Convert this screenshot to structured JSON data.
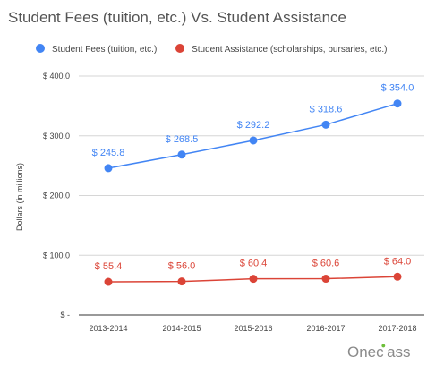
{
  "chart_data": {
    "type": "line",
    "title": "Student Fees (tuition, etc.)  Vs. Student Assistance",
    "ylabel": "Dollars (in millions)",
    "xlabel": "",
    "categories": [
      "2013-2014",
      "2014-2015",
      "2015-2016",
      "2016-2017",
      "2017-2018"
    ],
    "ylim": [
      0,
      400
    ],
    "yticks": [
      {
        "value": 0,
        "label": "$ -"
      },
      {
        "value": 100,
        "label": "$ 100.0"
      },
      {
        "value": 200,
        "label": "$ 200.0"
      },
      {
        "value": 300,
        "label": "$ 300.0"
      },
      {
        "value": 400,
        "label": "$ 400.0"
      }
    ],
    "grid": true,
    "legend": "top",
    "series": [
      {
        "name": "Student Fees (tuition, etc.)",
        "color": "#4285f4",
        "values": [
          245.8,
          268.5,
          292.2,
          318.6,
          354.0
        ],
        "labels": [
          "$ 245.8",
          "$ 268.5",
          "$ 292.2",
          "$ 318.6",
          "$ 354.0"
        ]
      },
      {
        "name": "Student Assistance (scholarships, bursaries, etc.)",
        "color": "#db4437",
        "values": [
          55.4,
          56.0,
          60.4,
          60.6,
          64.0
        ],
        "labels": [
          "$ 55.4",
          "$ 56.0",
          "$ 60.4",
          "$ 60.6",
          "$ 64.0"
        ]
      }
    ]
  },
  "brand": {
    "prefix": "Onec",
    "suffix": "ass",
    "leaf_icon": "leaf-icon",
    "leaf_color": "#6dbf3a"
  }
}
